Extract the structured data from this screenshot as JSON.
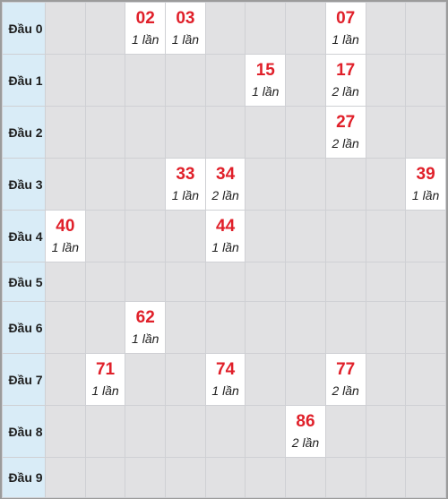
{
  "rows": [
    {
      "label": "Đầu 0",
      "cells": [
        null,
        null,
        {
          "num": "02",
          "count": "1 lần"
        },
        {
          "num": "03",
          "count": "1 lần"
        },
        null,
        null,
        null,
        {
          "num": "07",
          "count": "1 lần"
        },
        null,
        null
      ]
    },
    {
      "label": "Đầu 1",
      "cells": [
        null,
        null,
        null,
        null,
        null,
        {
          "num": "15",
          "count": "1 lần"
        },
        null,
        {
          "num": "17",
          "count": "2 lần"
        },
        null,
        null
      ]
    },
    {
      "label": "Đầu 2",
      "cells": [
        null,
        null,
        null,
        null,
        null,
        null,
        null,
        {
          "num": "27",
          "count": "2 lần"
        },
        null,
        null
      ]
    },
    {
      "label": "Đầu 3",
      "cells": [
        null,
        null,
        null,
        {
          "num": "33",
          "count": "1 lần"
        },
        {
          "num": "34",
          "count": "2 lần"
        },
        null,
        null,
        null,
        null,
        {
          "num": "39",
          "count": "1 lần"
        }
      ]
    },
    {
      "label": "Đầu 4",
      "cells": [
        {
          "num": "40",
          "count": "1 lần"
        },
        null,
        null,
        null,
        {
          "num": "44",
          "count": "1 lần"
        },
        null,
        null,
        null,
        null,
        null
      ]
    },
    {
      "label": "Đầu 5",
      "cells": [
        null,
        null,
        null,
        null,
        null,
        null,
        null,
        null,
        null,
        null
      ]
    },
    {
      "label": "Đầu 6",
      "cells": [
        null,
        null,
        {
          "num": "62",
          "count": "1 lần"
        },
        null,
        null,
        null,
        null,
        null,
        null,
        null
      ]
    },
    {
      "label": "Đầu 7",
      "cells": [
        null,
        {
          "num": "71",
          "count": "1 lần"
        },
        null,
        null,
        {
          "num": "74",
          "count": "1 lần"
        },
        null,
        null,
        {
          "num": "77",
          "count": "2 lần"
        },
        null,
        null
      ]
    },
    {
      "label": "Đầu 8",
      "cells": [
        null,
        null,
        null,
        null,
        null,
        null,
        {
          "num": "86",
          "count": "2 lần"
        },
        null,
        null,
        null
      ]
    },
    {
      "label": "Đầu 9",
      "cells": [
        null,
        null,
        null,
        null,
        null,
        null,
        null,
        null,
        null,
        null
      ]
    }
  ]
}
